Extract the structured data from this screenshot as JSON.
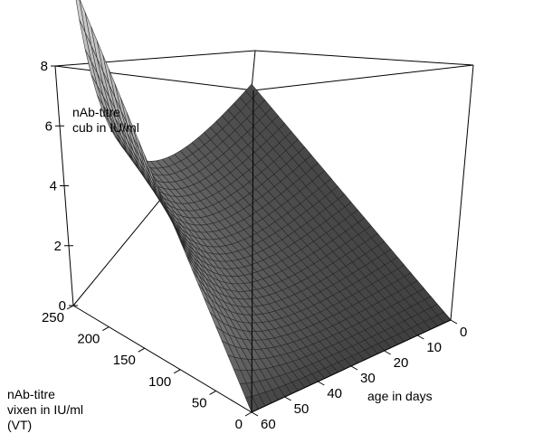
{
  "chart_data": {
    "type": "surface3d",
    "z_label_lines": [
      "nAb-titre",
      "cub in IU/ml"
    ],
    "vt_label_lines": [
      "nAb-titre",
      "vixen in IU/ml",
      "(VT)"
    ],
    "age_label": "age in days",
    "z_ticks": [
      "0",
      "2",
      "4",
      "6",
      "8"
    ],
    "vt_ticks": [
      "250",
      "200",
      "150",
      "100",
      "50",
      "0"
    ],
    "age_ticks": [
      "0",
      "10",
      "20",
      "30",
      "40",
      "50",
      "60"
    ],
    "z_range": [
      0,
      8
    ],
    "vt_range": [
      0,
      250
    ],
    "age_range": [
      0,
      60
    ],
    "surface_corners": [
      {
        "vt": 250,
        "age": 0,
        "z": 8
      },
      {
        "vt": 0,
        "age": 0,
        "z": 0
      },
      {
        "vt": 250,
        "age": 60,
        "z": 0
      },
      {
        "vt": 0,
        "age": 60,
        "z": 0
      }
    ],
    "grid": true,
    "colors": {
      "surface": "#8a8a8a",
      "mesh": "#222222",
      "box": "#000000"
    }
  }
}
